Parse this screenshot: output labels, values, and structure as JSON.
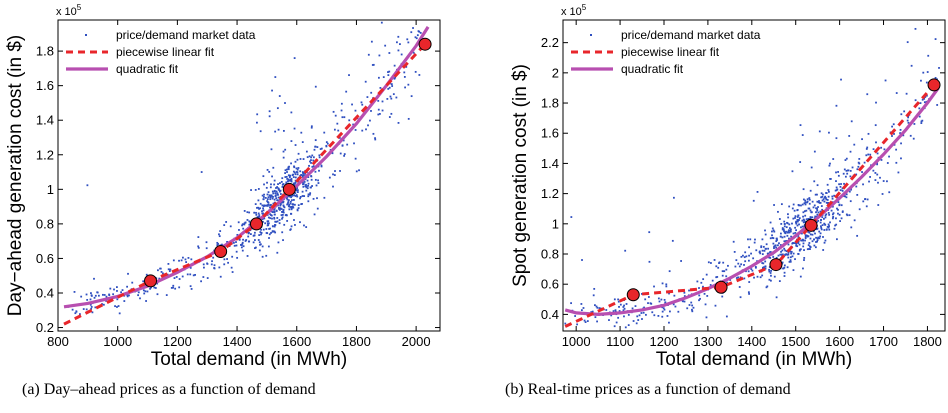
{
  "figure": {
    "captions": [
      "(a)  Day–ahead prices as a function of demand",
      "(b)  Real-time prices as a function of demand"
    ]
  },
  "chart_data": [
    {
      "type": "scatter",
      "title": "",
      "xlabel": "Total demand (in MWh)",
      "ylabel": "Day−ahead generation cost (in $)",
      "y_multiplier_label": "x 10",
      "y_multiplier_exponent": "5",
      "xlim": [
        800,
        2080
      ],
      "ylim": [
        0.18,
        1.98
      ],
      "xticks": [
        800,
        1000,
        1200,
        1400,
        1600,
        1800,
        2000
      ],
      "xtick_labels": [
        "800",
        "1000",
        "1200",
        "1400",
        "1600",
        "1800",
        "2000"
      ],
      "yticks": [
        0.2,
        0.4,
        0.6,
        0.8,
        1.0,
        1.2,
        1.4,
        1.6,
        1.8
      ],
      "ytick_labels": [
        "0.2",
        "0.4",
        "0.6",
        "0.8",
        "1",
        "1.2",
        "1.4",
        "1.6",
        "1.8"
      ],
      "legend": {
        "position": "top-left",
        "entries": [
          "price/demand market data",
          "piecewise linear fit",
          "quadratic fit"
        ]
      },
      "colors": {
        "scatter": "#2f4fc0",
        "piecewise": "#e8262b",
        "quadratic": "#b84fb0",
        "knot": "#e8262b"
      },
      "scatter_model": {
        "n_points": 900,
        "seed": 11,
        "x_range": [
          830,
          2020
        ],
        "x_concentration": [
          1480,
          1620
        ],
        "noise_base": 0.04,
        "noise_slope": 0.16,
        "outlier_rate": 0.05
      },
      "series": [
        {
          "name": "piecewise linear fit",
          "style": "dashed",
          "x": [
            820,
            1110,
            1345,
            1465,
            1575,
            2030
          ],
          "y": [
            0.22,
            0.47,
            0.64,
            0.8,
            1.0,
            1.84
          ]
        },
        {
          "name": "quadratic fit",
          "style": "solid",
          "x": [
            820,
            900,
            1000,
            1100,
            1200,
            1300,
            1400,
            1500,
            1600,
            1700,
            1800,
            1900,
            2000,
            2040
          ],
          "y": [
            0.32,
            0.34,
            0.38,
            0.44,
            0.52,
            0.61,
            0.72,
            0.86,
            1.02,
            1.19,
            1.38,
            1.6,
            1.83,
            1.94
          ]
        }
      ],
      "knots": {
        "x": [
          1110,
          1345,
          1465,
          1575,
          2030
        ],
        "y": [
          0.47,
          0.64,
          0.8,
          1.0,
          1.84
        ]
      }
    },
    {
      "type": "scatter",
      "title": "",
      "xlabel": "Total demand (in MWh)",
      "ylabel": "Spot generation cost (in $)",
      "y_multiplier_label": "x 10",
      "y_multiplier_exponent": "5",
      "xlim": [
        970,
        1840
      ],
      "ylim": [
        0.29,
        2.35
      ],
      "xticks": [
        1000,
        1100,
        1200,
        1300,
        1400,
        1500,
        1600,
        1700,
        1800
      ],
      "xtick_labels": [
        "1000",
        "1100",
        "1200",
        "1300",
        "1400",
        "1500",
        "1600",
        "1700",
        "1800"
      ],
      "yticks": [
        0.4,
        0.6,
        0.8,
        1.0,
        1.2,
        1.4,
        1.6,
        1.8,
        2.0,
        2.2
      ],
      "ytick_labels": [
        "0.4",
        "0.6",
        "0.8",
        "1",
        "1.2",
        "1.4",
        "1.6",
        "1.8",
        "2",
        "2.2"
      ],
      "legend": {
        "position": "top-left",
        "entries": [
          "price/demand market data",
          "piecewise linear fit",
          "quadratic fit"
        ]
      },
      "colors": {
        "scatter": "#2f4fc0",
        "piecewise": "#e8262b",
        "quadratic": "#b84fb0",
        "knot": "#e8262b"
      },
      "scatter_model": {
        "n_points": 900,
        "seed": 29,
        "x_range": [
          975,
          1835
        ],
        "x_concentration": [
          1420,
          1600
        ],
        "noise_base": 0.05,
        "noise_slope": 0.18,
        "outlier_rate": 0.05
      },
      "series": [
        {
          "name": "piecewise linear fit",
          "style": "dashed",
          "x": [
            975,
            1130,
            1330,
            1455,
            1535,
            1815
          ],
          "y": [
            0.32,
            0.53,
            0.58,
            0.73,
            0.99,
            1.92
          ]
        },
        {
          "name": "quadratic fit",
          "style": "solid",
          "x": [
            975,
            1000,
            1050,
            1100,
            1150,
            1200,
            1250,
            1300,
            1350,
            1400,
            1450,
            1500,
            1550,
            1600,
            1650,
            1700,
            1750,
            1800,
            1825
          ],
          "y": [
            0.43,
            0.41,
            0.4,
            0.41,
            0.43,
            0.46,
            0.51,
            0.57,
            0.64,
            0.72,
            0.81,
            0.92,
            1.04,
            1.17,
            1.31,
            1.46,
            1.62,
            1.8,
            1.9
          ]
        }
      ],
      "knots": {
        "x": [
          1130,
          1330,
          1455,
          1535,
          1815
        ],
        "y": [
          0.53,
          0.58,
          0.73,
          0.99,
          1.92
        ]
      }
    }
  ]
}
